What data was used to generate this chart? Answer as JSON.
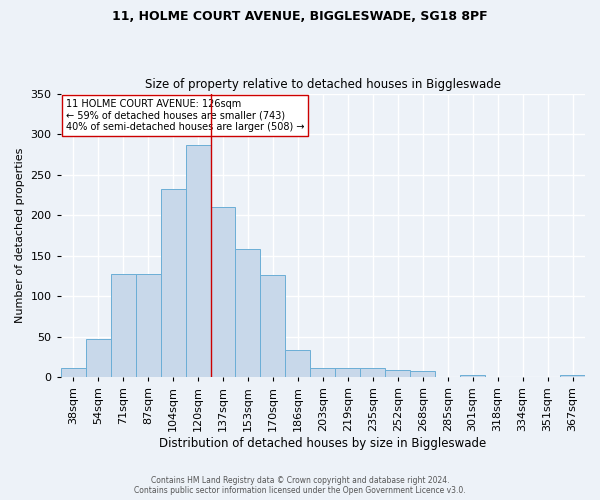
{
  "title": "11, HOLME COURT AVENUE, BIGGLESWADE, SG18 8PF",
  "subtitle": "Size of property relative to detached houses in Biggleswade",
  "xlabel": "Distribution of detached houses by size in Biggleswade",
  "ylabel": "Number of detached properties",
  "categories": [
    "38sqm",
    "54sqm",
    "71sqm",
    "87sqm",
    "104sqm",
    "120sqm",
    "137sqm",
    "153sqm",
    "170sqm",
    "186sqm",
    "203sqm",
    "219sqm",
    "235sqm",
    "252sqm",
    "268sqm",
    "285sqm",
    "301sqm",
    "318sqm",
    "334sqm",
    "351sqm",
    "367sqm"
  ],
  "values": [
    11,
    47,
    127,
    127,
    232,
    287,
    210,
    158,
    126,
    34,
    12,
    12,
    11,
    9,
    8,
    0,
    3,
    0,
    0,
    0,
    3
  ],
  "bar_color": "#c8d8ea",
  "bar_edge_color": "#6baed6",
  "vline_color": "#cc0000",
  "annotation_text": "11 HOLME COURT AVENUE: 126sqm\n← 59% of detached houses are smaller (743)\n40% of semi-detached houses are larger (508) →",
  "annotation_box_color": "white",
  "annotation_box_edge_color": "#cc0000",
  "bg_color": "#edf2f8",
  "grid_color": "white",
  "footer_line1": "Contains HM Land Registry data © Crown copyright and database right 2024.",
  "footer_line2": "Contains public sector information licensed under the Open Government Licence v3.0.",
  "ylim": [
    0,
    350
  ],
  "title_fontsize": 9,
  "subtitle_fontsize": 8.5
}
